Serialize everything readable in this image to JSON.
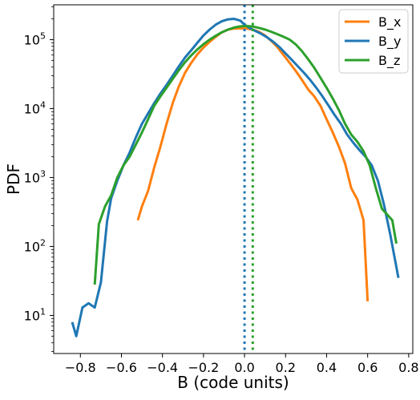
{
  "chart_data": {
    "type": "line",
    "xlabel": "B (code units)",
    "ylabel": "PDF",
    "xlim": [
      -0.93,
      0.82
    ],
    "ylim": [
      2.8,
      320000
    ],
    "yscale": "log",
    "grid": false,
    "legend_position": "top-right",
    "xticks": [
      {
        "value": -0.8,
        "label": "−0.8"
      },
      {
        "value": -0.6,
        "label": "−0.6"
      },
      {
        "value": -0.4,
        "label": "−0.4"
      },
      {
        "value": -0.2,
        "label": "−0.2"
      },
      {
        "value": 0.0,
        "label": "0.0"
      },
      {
        "value": 0.2,
        "label": "0.2"
      },
      {
        "value": 0.4,
        "label": "0.4"
      },
      {
        "value": 0.6,
        "label": "0.6"
      },
      {
        "value": 0.8,
        "label": "0.8"
      }
    ],
    "yticks": [
      {
        "value": 10,
        "base": "10",
        "exp": "1"
      },
      {
        "value": 100,
        "base": "10",
        "exp": "2"
      },
      {
        "value": 1000,
        "base": "10",
        "exp": "3"
      },
      {
        "value": 10000,
        "base": "10",
        "exp": "4"
      },
      {
        "value": 100000,
        "base": "10",
        "exp": "5"
      }
    ],
    "series": [
      {
        "name": "B_x",
        "color": "#ff7f0e",
        "x": [
          -0.52,
          -0.5,
          -0.47,
          -0.44,
          -0.41,
          -0.38,
          -0.35,
          -0.32,
          -0.29,
          -0.26,
          -0.23,
          -0.2,
          -0.17,
          -0.14,
          -0.11,
          -0.08,
          -0.05,
          -0.02,
          0.01,
          0.04,
          0.07,
          0.1,
          0.13,
          0.16,
          0.19,
          0.22,
          0.25,
          0.28,
          0.31,
          0.34,
          0.37,
          0.4,
          0.43,
          0.46,
          0.49,
          0.52,
          0.55,
          0.58,
          0.6
        ],
        "values": [
          240,
          380,
          640,
          1400,
          2800,
          6000,
          12000,
          21000,
          33000,
          46000,
          61000,
          77000,
          93000,
          110000,
          128000,
          140000,
          145000,
          146000,
          145000,
          140000,
          130000,
          115000,
          96000,
          78000,
          60000,
          46000,
          35000,
          26000,
          19000,
          15000,
          11000,
          7000,
          4500,
          2800,
          1600,
          700,
          480,
          240,
          16
        ]
      },
      {
        "name": "B_y",
        "color": "#1f77b4",
        "x": [
          -0.84,
          -0.82,
          -0.79,
          -0.76,
          -0.73,
          -0.7,
          -0.67,
          -0.65,
          -0.62,
          -0.59,
          -0.56,
          -0.53,
          -0.5,
          -0.47,
          -0.44,
          -0.41,
          -0.38,
          -0.35,
          -0.32,
          -0.29,
          -0.26,
          -0.23,
          -0.2,
          -0.17,
          -0.14,
          -0.11,
          -0.08,
          -0.05,
          -0.02,
          0.0,
          0.02,
          0.05,
          0.08,
          0.11,
          0.14,
          0.17,
          0.2,
          0.23,
          0.26,
          0.29,
          0.32,
          0.35,
          0.38,
          0.41,
          0.44,
          0.47,
          0.5,
          0.53,
          0.56,
          0.59,
          0.62,
          0.65,
          0.68,
          0.71,
          0.75
        ],
        "values": [
          8,
          5,
          13,
          15,
          13,
          30,
          230,
          500,
          900,
          1500,
          2300,
          3800,
          6000,
          8500,
          12000,
          16500,
          22000,
          30000,
          41000,
          55000,
          70000,
          90000,
          115000,
          140000,
          165000,
          185000,
          197000,
          200000,
          188000,
          165000,
          150000,
          135000,
          122000,
          108000,
          93000,
          78000,
          63000,
          51000,
          41000,
          33000,
          26000,
          20000,
          15000,
          11000,
          8000,
          6000,
          4200,
          3200,
          2500,
          2000,
          1500,
          900,
          400,
          150,
          35
        ]
      },
      {
        "name": "B_z",
        "color": "#2ca02c",
        "x": [
          -0.73,
          -0.71,
          -0.68,
          -0.65,
          -0.62,
          -0.59,
          -0.56,
          -0.53,
          -0.5,
          -0.47,
          -0.44,
          -0.41,
          -0.38,
          -0.35,
          -0.32,
          -0.29,
          -0.26,
          -0.23,
          -0.2,
          -0.17,
          -0.14,
          -0.11,
          -0.08,
          -0.05,
          -0.02,
          0.01,
          0.04,
          0.07,
          0.1,
          0.13,
          0.16,
          0.19,
          0.22,
          0.25,
          0.28,
          0.31,
          0.34,
          0.37,
          0.4,
          0.43,
          0.46,
          0.49,
          0.52,
          0.55,
          0.58,
          0.61,
          0.64,
          0.67,
          0.7,
          0.72,
          0.74
        ],
        "values": [
          28,
          210,
          380,
          550,
          1000,
          1500,
          2000,
          3000,
          4500,
          7000,
          11000,
          15000,
          20000,
          27000,
          36000,
          47000,
          59000,
          72000,
          86000,
          100000,
          114000,
          128000,
          140000,
          150000,
          156000,
          158000,
          155000,
          148000,
          140000,
          130000,
          120000,
          110000,
          100000,
          85000,
          68000,
          52000,
          39000,
          28000,
          20000,
          14000,
          9500,
          6000,
          4200,
          3300,
          2400,
          1500,
          700,
          350,
          280,
          240,
          110
        ]
      }
    ],
    "reference_lines": [
      {
        "x": 0.0,
        "color": "#1f77b4",
        "style": "dotted"
      },
      {
        "x": 0.04,
        "color": "#2ca02c",
        "style": "dotted"
      }
    ]
  }
}
